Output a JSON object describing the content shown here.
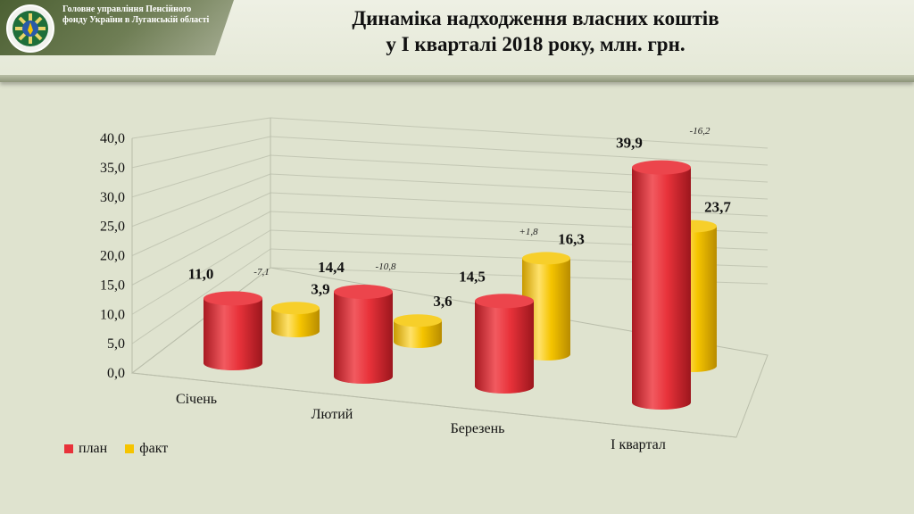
{
  "header": {
    "org_name": "Головне управління Пенсійного фонду України в Луганській області",
    "title_line1": "Динаміка надходження власних коштів",
    "title_line2": "у І кварталі 2018 року, млн. грн."
  },
  "colors": {
    "plan": "#e8323a",
    "fact": "#f5c400",
    "background": "#dfe3cf"
  },
  "legend": {
    "plan_label": "план",
    "fact_label": "факт"
  },
  "chart_data": {
    "type": "bar",
    "style": "3d-cylinder",
    "categories": [
      "Січень",
      "Лютий",
      "Березень",
      "І квартал"
    ],
    "series": [
      {
        "name": "план",
        "values": [
          11.0,
          14.4,
          14.5,
          39.9
        ],
        "labels": [
          "11,0",
          "14,4",
          "14,5",
          "39,9"
        ]
      },
      {
        "name": "факт",
        "values": [
          3.9,
          3.6,
          16.3,
          23.7
        ],
        "labels": [
          "3,9",
          "3,6",
          "16,3",
          "23,7"
        ]
      }
    ],
    "differences": [
      "-7,1",
      "-10,8",
      "+1,8",
      "-16,2"
    ],
    "yticks": [
      "0,0",
      "5,0",
      "10,0",
      "15,0",
      "20,0",
      "25,0",
      "30,0",
      "35,0",
      "40,0"
    ],
    "ylim": [
      0,
      40
    ],
    "grid": true,
    "legend_position": "bottom-left"
  }
}
